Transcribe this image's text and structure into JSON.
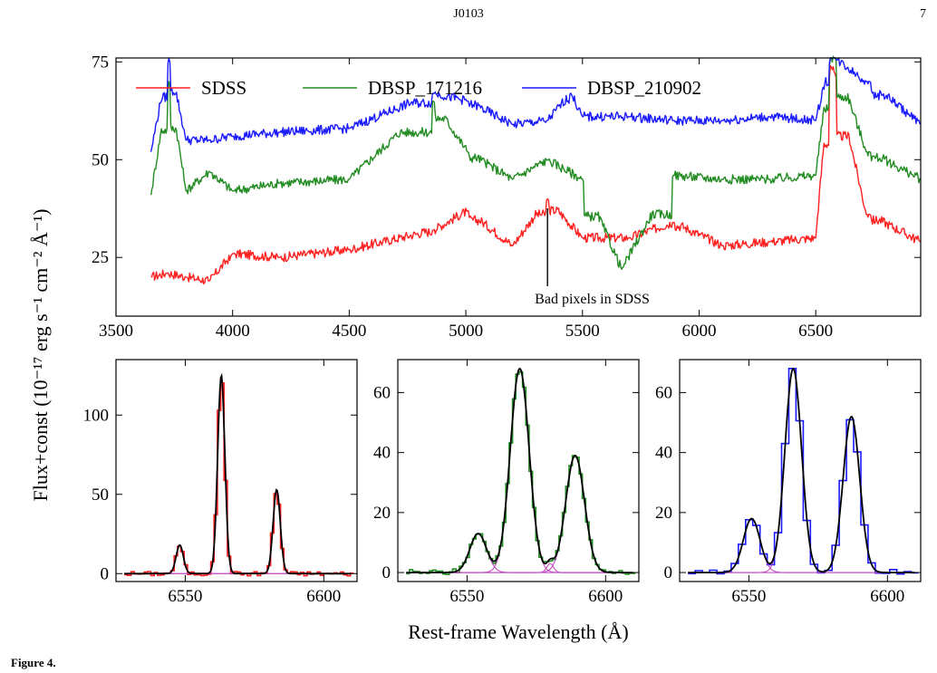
{
  "header": {
    "running_head": "J0103",
    "page_number": "7"
  },
  "figure": {
    "ylabel": "Flux+const (10⁻¹⁷ erg s⁻¹ cm⁻² Å⁻¹)",
    "xlabel": "Rest-frame Wavelength (Å)"
  },
  "caption": "Figure 4.",
  "colors": {
    "sdss": "#ff2020",
    "dbsp_171216": "#228b22",
    "dbsp_210902": "#1a1aff",
    "fit": "#000000",
    "component": "#c040c0"
  },
  "chart_data": [
    {
      "type": "line",
      "panel": "top",
      "xlim": [
        3500,
        6950
      ],
      "ylim": [
        10,
        76
      ],
      "x_ticks": [
        3500,
        4000,
        4500,
        5000,
        5500,
        6000,
        6500
      ],
      "y_ticks": [
        25,
        50,
        75
      ],
      "legend_position": "top",
      "annotation": "Bad pixels in SDSS",
      "annotation_x": 5350,
      "series": [
        {
          "name": "SDSS",
          "color": "#ff2020",
          "x": [
            3650,
            3720,
            3800,
            3900,
            4000,
            4200,
            4500,
            4861,
            5007,
            5200,
            5350,
            5500,
            5700,
            5890,
            6100,
            6300,
            6500,
            6563,
            6583,
            6717,
            6731,
            6950
          ],
          "y": [
            20,
            21,
            20,
            19,
            26,
            25,
            27,
            32,
            37,
            28,
            40,
            30,
            30,
            34,
            28,
            29,
            30,
            74,
            72,
            36,
            36,
            29
          ]
        },
        {
          "name": "DBSP_171216",
          "color": "#228b22",
          "x": [
            3650,
            3727,
            3800,
            3900,
            4000,
            4200,
            4500,
            4861,
            5007,
            5200,
            5350,
            5500,
            5668,
            5890,
            6100,
            6300,
            6500,
            6563,
            6583,
            6717,
            6731,
            6950
          ],
          "y": [
            41,
            70,
            42,
            47,
            42,
            44,
            45,
            65,
            52,
            45,
            50,
            45,
            22,
            46,
            45,
            45,
            46,
            76,
            76,
            52,
            52,
            45
          ]
        },
        {
          "name": "DBSP_210902",
          "color": "#1a1aff",
          "x": [
            3650,
            3727,
            3800,
            3900,
            4000,
            4200,
            4500,
            4861,
            5007,
            5200,
            5350,
            5450,
            5500,
            5700,
            5890,
            6100,
            6300,
            6500,
            6563,
            6583,
            6717,
            6731,
            6950
          ],
          "y": [
            52,
            76,
            55,
            55,
            56,
            57,
            58,
            67,
            65,
            59,
            60,
            67,
            61,
            61,
            60,
            60,
            61,
            60,
            76,
            76,
            70,
            70,
            59
          ]
        }
      ]
    },
    {
      "type": "line",
      "panel": "bottom-left",
      "xlim": [
        6525,
        6612
      ],
      "ylim": [
        -5,
        135
      ],
      "x_ticks": [
        6550,
        6600
      ],
      "y_ticks": [
        0,
        50,
        100
      ],
      "data_color": "#ff2020",
      "lines": [
        {
          "center": 6548,
          "amplitude": 18,
          "sigma": 1.3
        },
        {
          "center": 6563,
          "amplitude": 125,
          "sigma": 1.3
        },
        {
          "center": 6583,
          "amplitude": 53,
          "sigma": 1.3
        }
      ]
    },
    {
      "type": "line",
      "panel": "bottom-middle",
      "xlim": [
        6525,
        6612
      ],
      "ylim": [
        -3,
        71
      ],
      "x_ticks": [
        6550,
        6600
      ],
      "y_ticks": [
        0,
        20,
        40,
        60
      ],
      "data_color": "#228b22",
      "lines": [
        {
          "center": 6554,
          "amplitude": 13,
          "sigma": 3.0
        },
        {
          "center": 6569,
          "amplitude": 68,
          "sigma": 3.4
        },
        {
          "center": 6580,
          "amplitude": 3,
          "sigma": 1.2
        },
        {
          "center": 6589,
          "amplitude": 39,
          "sigma": 3.4
        }
      ]
    },
    {
      "type": "line",
      "panel": "bottom-right",
      "xlim": [
        6525,
        6612
      ],
      "ylim": [
        -3,
        71
      ],
      "x_ticks": [
        6550,
        6600
      ],
      "y_ticks": [
        0,
        20,
        40,
        60
      ],
      "data_color": "#1a1aff",
      "lines": [
        {
          "center": 6551,
          "amplitude": 18,
          "sigma": 3.0
        },
        {
          "center": 6566,
          "amplitude": 68,
          "sigma": 3.0
        },
        {
          "center": 6587,
          "amplitude": 52,
          "sigma": 3.0
        }
      ]
    }
  ]
}
